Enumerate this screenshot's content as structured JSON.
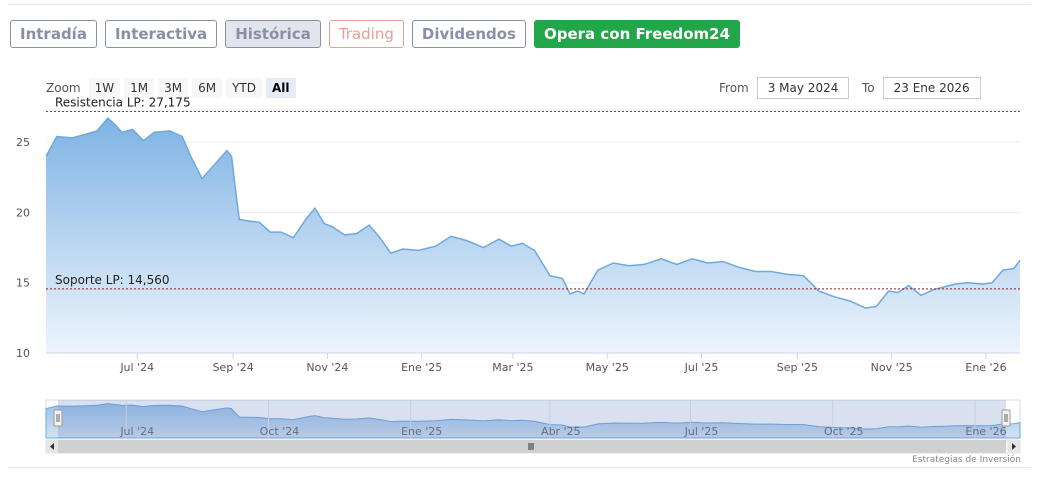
{
  "tabs": [
    {
      "label": "Intradía",
      "style": "default"
    },
    {
      "label": "Interactiva",
      "style": "default"
    },
    {
      "label": "Histórica",
      "style": "active"
    },
    {
      "label": "Trading",
      "style": "trading"
    },
    {
      "label": "Dividendos",
      "style": "default"
    },
    {
      "label": "Opera con Freedom24",
      "style": "cta"
    }
  ],
  "zoom": {
    "label": "Zoom",
    "buttons": [
      "1W",
      "1M",
      "3M",
      "6M",
      "YTD",
      "All"
    ],
    "active": "All"
  },
  "range": {
    "from_label": "From",
    "from_value": "3 May 2024",
    "to_label": "To",
    "to_value": "23 Ene 2026"
  },
  "credit": "Estrategias de Inversión",
  "colors": {
    "line": "#6fa8dc",
    "area_top": "#7eb3e4",
    "area_bottom": "#eef5fc",
    "cta": "#21a649",
    "resistance": "#555555",
    "support": "#8b1a1a"
  },
  "chart_data": {
    "type": "area",
    "title": "",
    "xlabel": "",
    "ylabel": "",
    "ylim": [
      10,
      27
    ],
    "y_ticks": [
      10,
      15,
      20,
      25
    ],
    "x_range": [
      "2024-05-03",
      "2026-01-23"
    ],
    "x_ticks": [
      {
        "date": "2024-07-01",
        "label": "Jul '24"
      },
      {
        "date": "2024-09-01",
        "label": "Sep '24"
      },
      {
        "date": "2024-11-01",
        "label": "Nov '24"
      },
      {
        "date": "2025-01-01",
        "label": "Ene '25"
      },
      {
        "date": "2025-03-01",
        "label": "Mar '25"
      },
      {
        "date": "2025-05-01",
        "label": "May '25"
      },
      {
        "date": "2025-07-01",
        "label": "Jul '25"
      },
      {
        "date": "2025-09-01",
        "label": "Sep '25"
      },
      {
        "date": "2025-11-01",
        "label": "Nov '25"
      },
      {
        "date": "2026-01-01",
        "label": "Ene '26"
      }
    ],
    "grid": true,
    "reference_lines": [
      {
        "label": "Resistencia LP: 27,175",
        "value": 27.175,
        "color": "#555555"
      },
      {
        "label": "Soporte LP: 14,560",
        "value": 14.56,
        "color": "#8b1a1a"
      }
    ],
    "series": [
      {
        "x": [
          "2024-05-03",
          "2024-05-10",
          "2024-05-20",
          "2024-05-30",
          "2024-06-05",
          "2024-06-12",
          "2024-06-17",
          "2024-06-21",
          "2024-06-28",
          "2024-07-05",
          "2024-07-12",
          "2024-07-22",
          "2024-07-30",
          "2024-08-05",
          "2024-08-12",
          "2024-08-20",
          "2024-08-28",
          "2024-08-31",
          "2024-09-03",
          "2024-09-05",
          "2024-09-10",
          "2024-09-18",
          "2024-09-25",
          "2024-10-02",
          "2024-10-10",
          "2024-10-18",
          "2024-10-24",
          "2024-10-30",
          "2024-11-04",
          "2024-11-12",
          "2024-11-20",
          "2024-11-28",
          "2024-12-05",
          "2024-12-12",
          "2024-12-20",
          "2024-12-30",
          "2025-01-10",
          "2025-01-20",
          "2025-01-30",
          "2025-02-10",
          "2025-02-20",
          "2025-02-28",
          "2025-03-07",
          "2025-03-15",
          "2025-03-25",
          "2025-04-02",
          "2025-04-07",
          "2025-04-12",
          "2025-04-16",
          "2025-04-25",
          "2025-05-05",
          "2025-05-15",
          "2025-05-25",
          "2025-06-05",
          "2025-06-15",
          "2025-06-25",
          "2025-07-05",
          "2025-07-15",
          "2025-07-25",
          "2025-08-05",
          "2025-08-15",
          "2025-08-25",
          "2025-09-05",
          "2025-09-15",
          "2025-09-25",
          "2025-10-05",
          "2025-10-15",
          "2025-10-22",
          "2025-10-30",
          "2025-11-05",
          "2025-11-12",
          "2025-11-20",
          "2025-11-28",
          "2025-12-05",
          "2025-12-12",
          "2025-12-20",
          "2025-12-30",
          "2026-01-05",
          "2026-01-12",
          "2026-01-19",
          "2026-01-23"
        ],
        "y": [
          24.0,
          25.4,
          25.3,
          25.6,
          25.8,
          26.7,
          26.2,
          25.7,
          25.9,
          25.1,
          25.7,
          25.8,
          25.4,
          23.9,
          22.4,
          23.4,
          24.4,
          24.0,
          21.2,
          19.5,
          19.4,
          19.3,
          18.6,
          18.6,
          18.2,
          19.5,
          20.3,
          19.2,
          19.0,
          18.4,
          18.5,
          19.1,
          18.2,
          17.1,
          17.4,
          17.3,
          17.6,
          18.3,
          18.0,
          17.5,
          18.1,
          17.6,
          17.8,
          17.3,
          15.5,
          15.3,
          14.2,
          14.4,
          14.2,
          15.9,
          16.4,
          16.2,
          16.3,
          16.7,
          16.3,
          16.7,
          16.4,
          16.5,
          16.1,
          15.8,
          15.8,
          15.6,
          15.5,
          14.4,
          14.0,
          13.7,
          13.2,
          13.3,
          14.4,
          14.3,
          14.8,
          14.1,
          14.5,
          14.7,
          14.9,
          15.0,
          14.9,
          15.0,
          15.9,
          16.0,
          16.6
        ]
      }
    ]
  }
}
